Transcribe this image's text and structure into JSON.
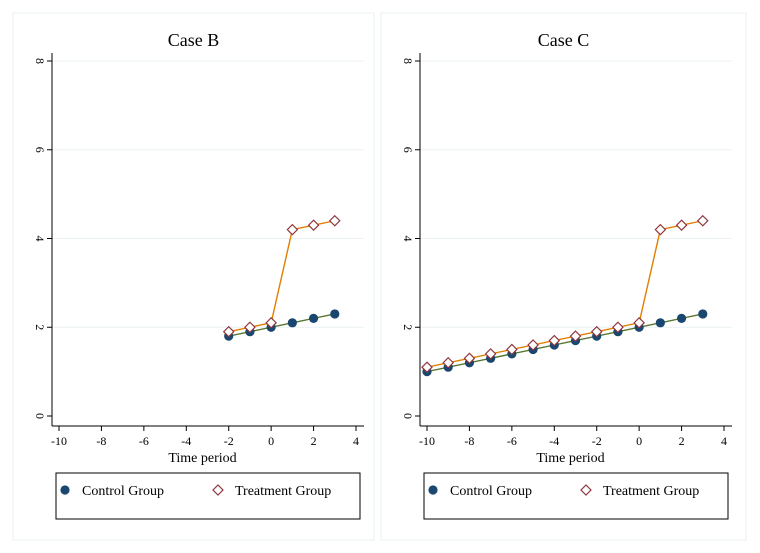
{
  "colors": {
    "control": "#1a476f",
    "treatment": "#90353b",
    "control_line": "#55752f",
    "treatment_line": "#e37e00",
    "grid": "#eaf2f3",
    "panel_border": "#eaf2f3"
  },
  "chart_data": [
    {
      "type": "line",
      "title": "Case B",
      "xlabel": "Time period",
      "ylabel": "",
      "xlim": [
        -10,
        4
      ],
      "ylim": [
        0,
        8
      ],
      "xticks": [
        -10,
        -8,
        -6,
        -4,
        -2,
        0,
        2,
        4
      ],
      "yticks": [
        0,
        2,
        4,
        6,
        8
      ],
      "grid": true,
      "legend_position": "bottom",
      "series": [
        {
          "name": "Control Group",
          "marker": "circle",
          "x": [
            -2,
            -1,
            0,
            1,
            2,
            3
          ],
          "y": [
            1.8,
            1.9,
            2.0,
            2.1,
            2.2,
            2.3
          ]
        },
        {
          "name": "Treatment Group",
          "marker": "diamond",
          "x": [
            -2,
            -1,
            0,
            1,
            2,
            3
          ],
          "y": [
            1.9,
            2.0,
            2.1,
            4.2,
            4.3,
            4.4
          ]
        }
      ]
    },
    {
      "type": "line",
      "title": "Case C",
      "xlabel": "Time period",
      "ylabel": "",
      "xlim": [
        -10,
        4
      ],
      "ylim": [
        0,
        8
      ],
      "xticks": [
        -10,
        -8,
        -6,
        -4,
        -2,
        0,
        2,
        4
      ],
      "yticks": [
        0,
        2,
        4,
        6,
        8
      ],
      "grid": true,
      "legend_position": "bottom",
      "series": [
        {
          "name": "Control Group",
          "marker": "circle",
          "x": [
            -10,
            -9,
            -8,
            -7,
            -6,
            -5,
            -4,
            -3,
            -2,
            -1,
            0,
            1,
            2,
            3
          ],
          "y": [
            1.0,
            1.1,
            1.2,
            1.3,
            1.4,
            1.5,
            1.6,
            1.7,
            1.8,
            1.9,
            2.0,
            2.1,
            2.2,
            2.3
          ]
        },
        {
          "name": "Treatment Group",
          "marker": "diamond",
          "x": [
            -10,
            -9,
            -8,
            -7,
            -6,
            -5,
            -4,
            -3,
            -2,
            -1,
            0,
            1,
            2,
            3
          ],
          "y": [
            1.1,
            1.2,
            1.3,
            1.4,
            1.5,
            1.6,
            1.7,
            1.8,
            1.9,
            2.0,
            2.1,
            4.2,
            4.3,
            4.4
          ]
        }
      ]
    }
  ]
}
